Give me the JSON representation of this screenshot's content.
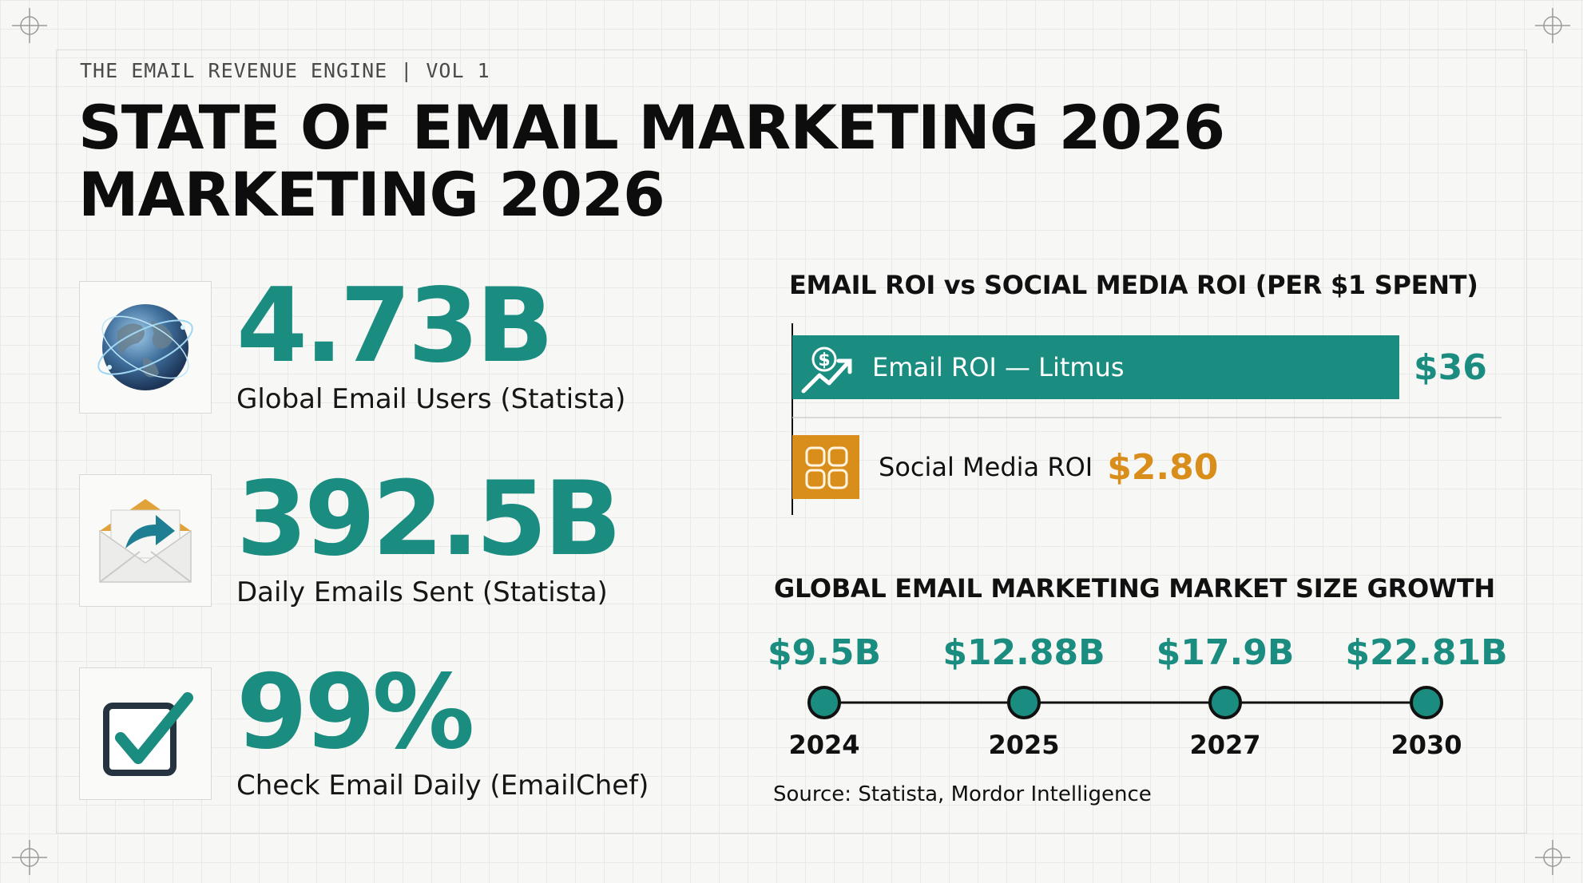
{
  "header": {
    "kicker": "THE EMAIL REVENUE ENGINE | VOL 1",
    "title_line1": "STATE OF EMAIL MARKETING 2026",
    "title_line2": "MARKETING 2026"
  },
  "stats": [
    {
      "value": "4.73B",
      "label": "Global Email Users (Statista)",
      "icon": "globe-icon"
    },
    {
      "value": "392.5B",
      "label": "Daily Emails Sent (Statista)",
      "icon": "envelope-icon"
    },
    {
      "value": "99%",
      "label": "Check Email Daily (EmailChef)",
      "icon": "checkbox-icon"
    }
  ],
  "colors": {
    "teal": "#1b8c80",
    "orange": "#d98e1c",
    "dark_teal": "#0f5f57"
  },
  "chart_data": [
    {
      "type": "bar",
      "title": "EMAIL ROI vs SOCIAL MEDIA ROI (PER $1 SPENT)",
      "categories": [
        "Email ROI — Litmus",
        "Social Media ROI"
      ],
      "values": [
        36,
        2.8
      ],
      "value_labels": [
        "$36",
        "$2.80"
      ],
      "icons": [
        "growth-dollar-icon",
        "social-media-icon"
      ],
      "orientation": "horizontal",
      "xlim": [
        0,
        36
      ]
    },
    {
      "type": "line",
      "title": "GLOBAL EMAIL MARKETING MARKET SIZE GROWTH",
      "x": [
        "2024",
        "2025",
        "2027",
        "2030"
      ],
      "values": [
        9.5,
        12.88,
        17.9,
        22.81
      ],
      "value_labels": [
        "$9.5B",
        "$12.88B",
        "$17.9B",
        "$22.81B"
      ],
      "source": "Source: Statista, Mordor Intelligence"
    }
  ]
}
